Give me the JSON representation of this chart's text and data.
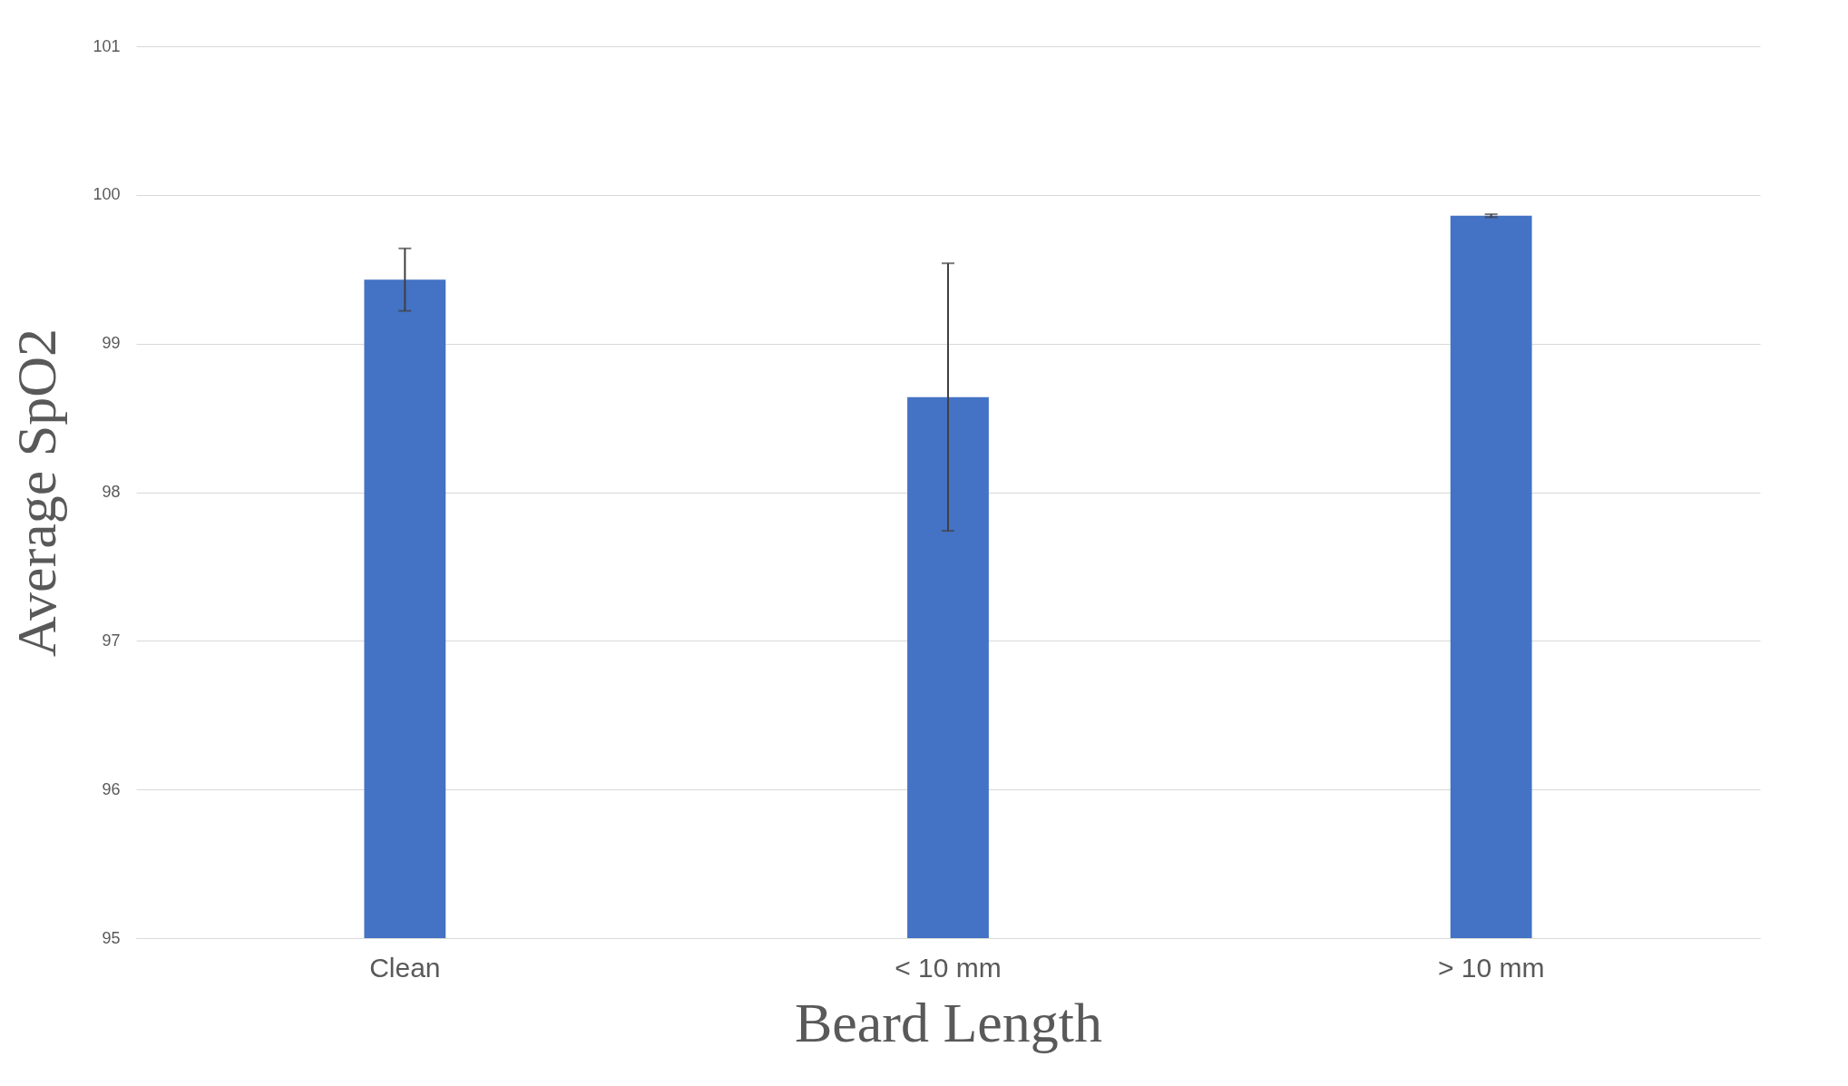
{
  "chart_data": {
    "type": "bar",
    "xlabel": "Beard Length",
    "ylabel": "Average SpO2",
    "categories": [
      "Clean",
      "< 10 mm",
      "> 10 mm"
    ],
    "values": [
      99.43,
      98.64,
      99.86
    ],
    "errors": [
      0.21,
      0.9,
      0.01
    ],
    "color": "#4472c4",
    "ylim": [
      95,
      101
    ],
    "yticks": [
      95,
      96,
      97,
      98,
      99,
      100,
      101
    ],
    "grid": "y"
  }
}
